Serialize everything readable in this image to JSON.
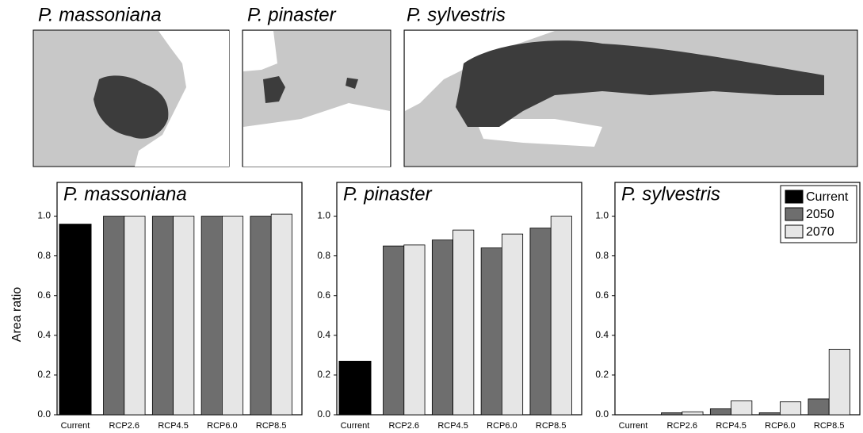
{
  "maps": [
    {
      "title": "P. massoniana"
    },
    {
      "title": "P. pinaster"
    },
    {
      "title": "P. sylvestris"
    }
  ],
  "chart_data": [
    {
      "type": "bar",
      "title": "P. massoniana",
      "ylabel": "Area ratio",
      "categories": [
        "Current",
        "RCP2.6",
        "RCP4.5",
        "RCP6.0",
        "RCP8.5"
      ],
      "series": [
        {
          "color": "#000000",
          "values": [
            0.96,
            null,
            null,
            null,
            null
          ]
        },
        {
          "color": "#6e6e6e",
          "values": [
            null,
            1.0,
            1.0,
            1.0,
            1.0
          ]
        },
        {
          "color": "#e6e6e6",
          "values": [
            null,
            1.0,
            1.0,
            1.0,
            1.01
          ]
        }
      ],
      "ylim": [
        0,
        1.17
      ],
      "yticks": [
        {
          "value": 0,
          "label": "0.0"
        },
        0.2,
        0.4,
        0.6,
        0.8,
        {
          "value": 1,
          "label": "1.0"
        }
      ]
    },
    {
      "type": "bar",
      "title": "P. pinaster",
      "categories": [
        "Current",
        "RCP2.6",
        "RCP4.5",
        "RCP6.0",
        "RCP8.5"
      ],
      "series": [
        {
          "color": "#000000",
          "values": [
            0.27,
            null,
            null,
            null,
            null
          ]
        },
        {
          "color": "#6e6e6e",
          "values": [
            null,
            0.85,
            0.88,
            0.84,
            0.94
          ]
        },
        {
          "color": "#e6e6e6",
          "values": [
            null,
            0.855,
            0.93,
            0.91,
            1.0
          ]
        }
      ],
      "ylim": [
        0,
        1.17
      ],
      "yticks": [
        {
          "value": 0,
          "label": "0.0"
        },
        0.2,
        0.4,
        0.6,
        0.8,
        {
          "value": 1,
          "label": "1.0"
        }
      ]
    },
    {
      "type": "bar",
      "title": "P. sylvestris",
      "legend": "upper right",
      "categories": [
        "Current",
        "RCP2.6",
        "RCP4.5",
        "RCP6.0",
        "RCP8.5"
      ],
      "series": [
        {
          "name": "Current",
          "color": "#000000",
          "values": [
            0,
            null,
            null,
            null,
            null
          ]
        },
        {
          "name": "2050",
          "color": "#6e6e6e",
          "values": [
            null,
            0.01,
            0.03,
            0.01,
            0.08
          ]
        },
        {
          "name": "2070",
          "color": "#e6e6e6",
          "values": [
            null,
            0.015,
            0.07,
            0.065,
            0.33
          ]
        }
      ],
      "ylim": [
        0,
        1.17
      ],
      "yticks": [
        {
          "value": 0,
          "label": "0.0"
        },
        0.2,
        0.4,
        0.6,
        0.8,
        {
          "value": 1,
          "label": "1.0"
        }
      ]
    }
  ]
}
